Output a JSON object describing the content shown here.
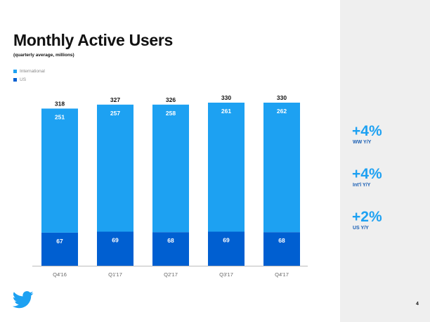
{
  "slide": {
    "title": "Monthly Active Users",
    "subtitle": "(quarterly average, millions)",
    "page_number": "4"
  },
  "legend": [
    {
      "label": "International",
      "color": "#1da1f2"
    },
    {
      "label": "US",
      "color": "#005fd1"
    }
  ],
  "stats": [
    {
      "value": "+4%",
      "label": "WW Y/Y"
    },
    {
      "value": "+4%",
      "label": "Int'l Y/Y"
    },
    {
      "value": "+2%",
      "label": "US Y/Y"
    }
  ],
  "icons": {
    "logo": "twitter-bird-icon"
  },
  "colors": {
    "international": "#1da1f2",
    "us": "#005fd1",
    "accent": "#1da1f2"
  },
  "chart_data": {
    "type": "bar",
    "stacked": true,
    "categories": [
      "Q4'16",
      "Q1'17",
      "Q2'17",
      "Q3'17",
      "Q4'17"
    ],
    "series": [
      {
        "name": "US",
        "values": [
          67,
          69,
          68,
          69,
          68
        ]
      },
      {
        "name": "International",
        "values": [
          251,
          257,
          258,
          261,
          262
        ]
      }
    ],
    "totals": [
      318,
      327,
      326,
      330,
      330
    ],
    "ylim": [
      0,
      330
    ],
    "grid": false,
    "legend_position": "top-left"
  }
}
